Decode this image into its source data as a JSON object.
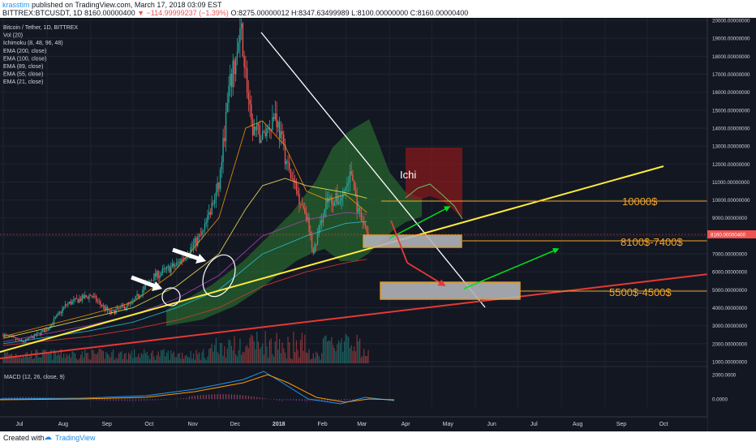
{
  "header": {
    "user": "krasstim",
    "published_text": "published on TradingView.com, March 17, 2018 03:09 EST",
    "symbol_line": "BITTREX:BTCUSDT, 1D  8160.00000400",
    "change": "▼ −114.99999237 (−1.39%)",
    "ohlc": "O:8275.00000012  H:8347.63499989  L:8100.00000000  C:8160.00000400"
  },
  "legend": [
    "Bitcoin / Tether, 1D, BITTREX",
    "Vol (20)",
    "Ichimoku (8, 48, 96, 48)",
    "EMA (200, close)",
    "EMA (100, close)",
    "EMA (89, close)",
    "EMA (55, close)",
    "EMA (21, close)"
  ],
  "footer": {
    "created": "Created with",
    "brand": "TradingView"
  },
  "colors": {
    "background": "#131722",
    "grid": "#1f2433",
    "candle_up": "#26a69a",
    "candle_down": "#ef5350",
    "yellow_line": "#ffeb3b",
    "red_line": "#e53935",
    "white_line": "#ffffff",
    "zone_fill": "#b0b3b8",
    "zone_border": "#f5a623",
    "cloud_green": "#2e7d32",
    "cloud_red": "#8b1a1a",
    "label_orange": "#f5a623",
    "price_tag": "#ef5350"
  },
  "annotations": {
    "ichi": "Ichi",
    "level_10000": "10000$",
    "level_8100": "8100$-7400$",
    "level_5500": "5500$-4500$"
  },
  "price_tag": "8160.00000400",
  "macd": {
    "label": "MACD (12, 26, close, 9)",
    "ticks": [
      "2000.0000",
      "0.0000"
    ]
  },
  "chart_data": {
    "type": "line",
    "title": "Bitcoin / Tether, 1D, BITTREX",
    "x_tick_labels": [
      "Jul",
      "Aug",
      "Sep",
      "Oct",
      "Nov",
      "Dec",
      "2018",
      "Feb",
      "Mar",
      "Apr",
      "May",
      "Jun",
      "Jul",
      "Aug",
      "Sep",
      "Oct"
    ],
    "y_tick_labels": [
      "1000.00000000",
      "2000.00000000",
      "3000.00000000",
      "4000.00000000",
      "5000.00000000",
      "6000.00000000",
      "7000.00000000",
      "8000.00000000",
      "9000.00000000",
      "10000.00000000",
      "11000.00000000",
      "12000.00000000",
      "13000.00000000",
      "14000.00000000",
      "15000.00000000",
      "16000.00000000",
      "17000.00000000",
      "18000.00000000",
      "19000.00000000",
      "20000.00000000"
    ],
    "ylim": [
      0,
      20000
    ],
    "series": [
      {
        "name": "Bitcoin / Tether",
        "x": [
          "Jul 1",
          "Jul 15",
          "Aug 1",
          "Aug 15",
          "Sep 1",
          "Sep 15",
          "Oct 1",
          "Oct 15",
          "Nov 1",
          "Nov 10",
          "Nov 20",
          "Dec 1",
          "Dec 8",
          "Dec 17",
          "Dec 24",
          "Jan 1",
          "Jan 10",
          "Jan 20",
          "Feb 1",
          "Feb 6",
          "Feb 15",
          "Feb 25",
          "Mar 5",
          "Mar 10",
          "Mar 17"
        ],
        "values": [
          2500,
          2100,
          2800,
          4200,
          4700,
          3700,
          4300,
          5700,
          6400,
          7200,
          8200,
          10800,
          16000,
          19300,
          14000,
          13500,
          14800,
          11500,
          9200,
          7000,
          10000,
          10000,
          11500,
          9200,
          8160
        ]
      }
    ],
    "levels": [
      10000,
      8100,
      7400,
      5500,
      4500
    ]
  }
}
